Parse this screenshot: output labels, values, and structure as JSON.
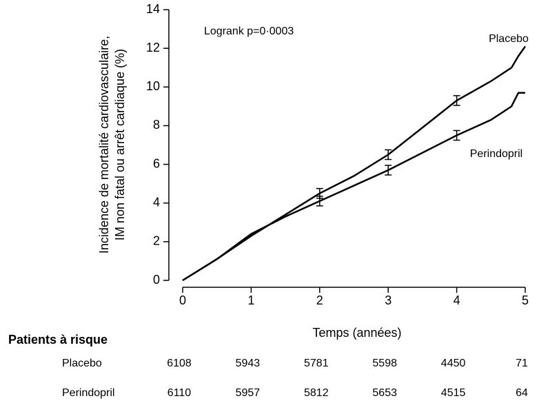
{
  "chart_data": {
    "type": "line",
    "ylabel": [
      "Incidence de mortalité cardiovasculaire,",
      "IM non fatal ou arrêt cardiaque (%)"
    ],
    "xlabel": "Temps (années)",
    "annotation": "Logrank p=0·0003",
    "x": [
      0,
      0.5,
      1,
      1.5,
      2,
      2.5,
      3,
      3.5,
      4,
      4.5,
      4.8,
      4.9,
      5
    ],
    "series": [
      {
        "name": "Placebo",
        "color": "#000000",
        "values": [
          0,
          1.1,
          2.3,
          3.4,
          4.5,
          5.4,
          6.5,
          7.9,
          9.3,
          10.3,
          11.0,
          11.6,
          12.1
        ],
        "errors": [
          null,
          null,
          null,
          null,
          0.25,
          null,
          0.25,
          null,
          0.25,
          null,
          null,
          null,
          null
        ]
      },
      {
        "name": "Perindopril",
        "color": "#000000",
        "values": [
          0,
          1.1,
          2.4,
          3.3,
          4.1,
          4.9,
          5.7,
          6.6,
          7.5,
          8.3,
          9.0,
          9.7,
          9.7
        ],
        "errors": [
          null,
          null,
          null,
          null,
          0.25,
          null,
          0.25,
          null,
          0.25,
          null,
          null,
          null,
          null
        ]
      }
    ],
    "xlim": [
      0,
      5
    ],
    "xticks": [
      0,
      1,
      2,
      3,
      4,
      5
    ],
    "ylim": [
      0,
      14
    ],
    "yticks": [
      0,
      2,
      4,
      6,
      8,
      10,
      12,
      14
    ]
  },
  "risk_table": {
    "title": "Patients à risque",
    "rows": [
      {
        "name": "Placebo",
        "values": [
          6108,
          5943,
          5781,
          5598,
          4450,
          71
        ]
      },
      {
        "name": "Perindopril",
        "values": [
          6110,
          5957,
          5812,
          5653,
          4515,
          64
        ]
      }
    ]
  }
}
